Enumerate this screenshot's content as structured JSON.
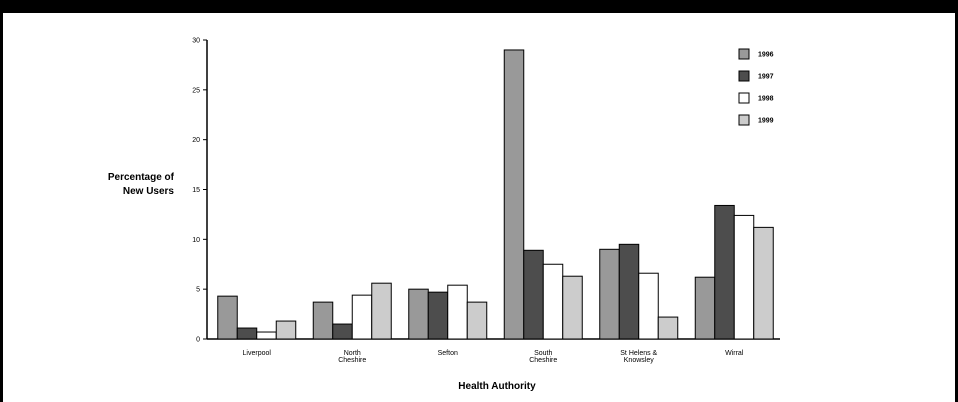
{
  "chart_data": {
    "type": "bar",
    "categories": [
      [
        "Liverpool"
      ],
      [
        "North",
        "Cheshire"
      ],
      [
        "Sefton"
      ],
      [
        "South",
        "Cheshire"
      ],
      [
        "St Helens &",
        "Knowsley"
      ],
      [
        "Wirral"
      ]
    ],
    "series": [
      {
        "name": "1996",
        "color": "#999999",
        "values": [
          4.3,
          3.7,
          5.0,
          29.0,
          9.0,
          6.2
        ]
      },
      {
        "name": "1997",
        "color": "#4d4d4d",
        "values": [
          1.1,
          1.5,
          4.7,
          8.9,
          9.5,
          13.4
        ]
      },
      {
        "name": "1998",
        "color": "#ffffff",
        "values": [
          0.7,
          4.4,
          5.4,
          7.5,
          6.6,
          12.4
        ]
      },
      {
        "name": "1999",
        "color": "#cccccc",
        "values": [
          1.8,
          5.6,
          3.7,
          6.3,
          2.2,
          11.2
        ]
      }
    ],
    "ylabel": [
      "Percentage of",
      "New Users"
    ],
    "xlabel": "Health Authority",
    "ylim": [
      0,
      30
    ],
    "yticks": [
      "0",
      "5",
      "10",
      "15",
      "20",
      "25",
      "30"
    ],
    "grid": false,
    "legend_position": "top-right"
  }
}
